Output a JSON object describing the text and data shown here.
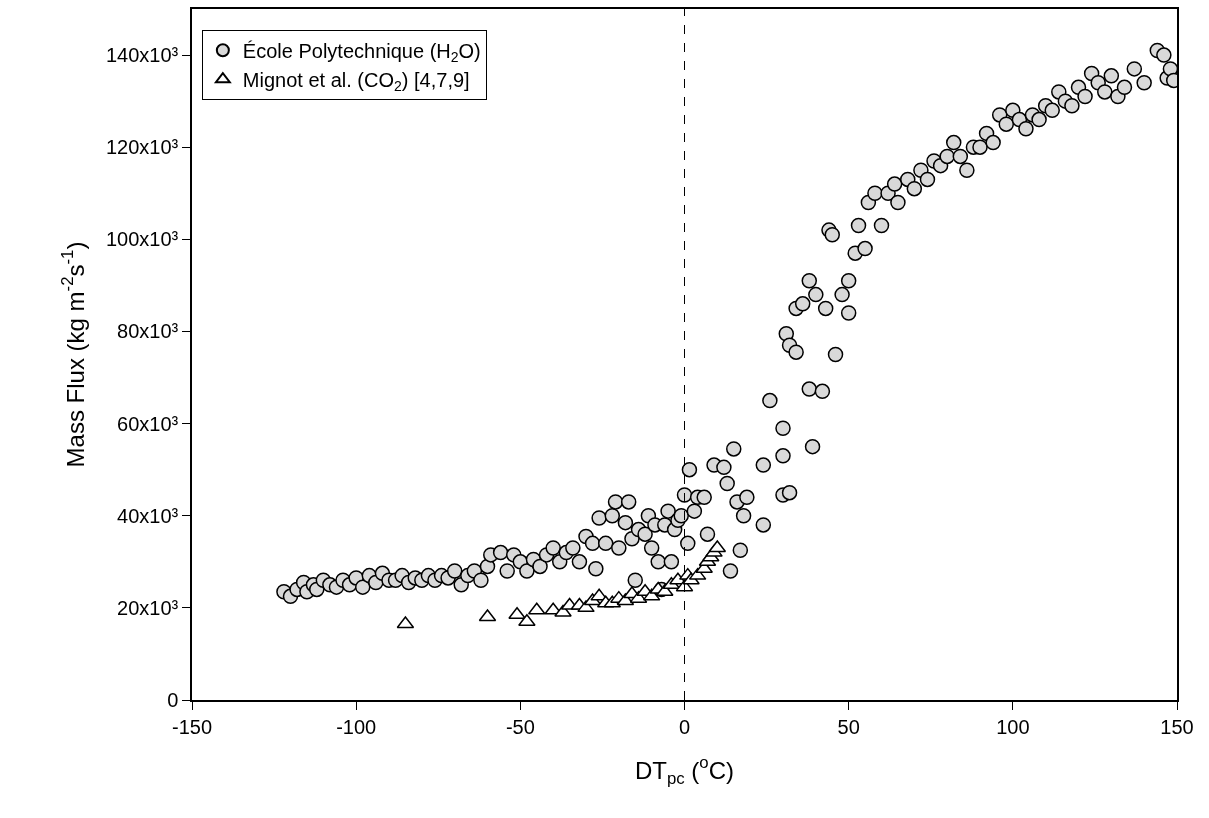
{
  "chart_data": {
    "type": "scatter",
    "xlabel": "DT$_{pc}$ ($^{o}$C)",
    "ylabel": "Mass Flux (kg m$^{-2}$s$^{-1}$)",
    "xlim": [
      -150,
      150
    ],
    "xticks": [
      -150,
      -100,
      -50,
      0,
      50,
      100,
      150
    ],
    "ylim": [
      0,
      150000
    ],
    "yticks": [
      0,
      {
        "value": 20000,
        "label": "20x10³"
      },
      {
        "value": 40000,
        "label": "40x10³"
      },
      {
        "value": 60000,
        "label": "60x10³"
      },
      {
        "value": 80000,
        "label": "80x10³"
      },
      {
        "value": 100000,
        "label": "100x10³"
      },
      {
        "value": 120000,
        "label": "120x10³"
      },
      {
        "value": 140000,
        "label": "140x10³"
      }
    ],
    "legend": "top left",
    "ref_lines": [
      {
        "axis": "x",
        "value": 0,
        "color": "#000000",
        "line_style": "dashed"
      }
    ],
    "series": [
      {
        "name": "École Polytechnique (H$_{2}$O)",
        "color": "#d9d9d9",
        "marker": "circle",
        "x": [
          -122,
          -120,
          -118,
          -116,
          -115,
          -113,
          -112,
          -110,
          -108,
          -106,
          -104,
          -102,
          -100,
          -98,
          -96,
          -94,
          -92,
          -90,
          -88,
          -86,
          -84,
          -82,
          -80,
          -78,
          -76,
          -74,
          -72,
          -70,
          -68,
          -66,
          -64,
          -62,
          -60,
          -59,
          -56,
          -54,
          -52,
          -50,
          -48,
          -46,
          -44,
          -42,
          -40,
          -38,
          -36,
          -34,
          -32,
          -30,
          -28,
          -27,
          -26,
          -24,
          -22,
          -21,
          -20,
          -18,
          -17,
          -16,
          -15,
          -14,
          -12,
          -11,
          -10,
          -9,
          -8,
          -7,
          -6,
          -5,
          -4,
          -3,
          -2,
          -1,
          0,
          1,
          1.5,
          3,
          4,
          6,
          7,
          9,
          12,
          13,
          14,
          15,
          16,
          17,
          18,
          19,
          24,
          24,
          26,
          30,
          30,
          30,
          32,
          31,
          32,
          34,
          34,
          36,
          38,
          38,
          39,
          40,
          42,
          43,
          44,
          45,
          46,
          48,
          50,
          50,
          52,
          53,
          55,
          56,
          58,
          60,
          62,
          64,
          65,
          68,
          70,
          72,
          74,
          76,
          78,
          80,
          82,
          84,
          86,
          88,
          90,
          92,
          94,
          96,
          98,
          100,
          102,
          104,
          106,
          108,
          110,
          112,
          114,
          116,
          118,
          120,
          122,
          124,
          126,
          128,
          130,
          132,
          134,
          137,
          140,
          144,
          146,
          147,
          148,
          149
        ],
        "values": [
          23500,
          22500,
          24000,
          25500,
          23500,
          25000,
          24000,
          26000,
          25000,
          24500,
          26000,
          25000,
          26500,
          24500,
          27000,
          25500,
          27500,
          26000,
          26000,
          27000,
          25500,
          26500,
          26000,
          27000,
          26000,
          27000,
          26500,
          28000,
          25000,
          27000,
          28000,
          26000,
          29000,
          31500,
          32000,
          28000,
          31500,
          30000,
          28000,
          30500,
          29000,
          31500,
          33000,
          30000,
          32000,
          33000,
          30000,
          35500,
          34000,
          28500,
          39500,
          34000,
          40000,
          43000,
          33000,
          38500,
          43000,
          35000,
          26000,
          37000,
          36000,
          40000,
          33000,
          38000,
          30000,
          24000,
          38000,
          41000,
          30000,
          37000,
          39000,
          40000,
          44500,
          34000,
          50000,
          41000,
          44000,
          44000,
          36000,
          51000,
          50500,
          47000,
          28000,
          54500,
          43000,
          32500,
          40000,
          44000,
          38000,
          51000,
          65000,
          44500,
          59000,
          53000,
          45000,
          79500,
          77000,
          75500,
          85000,
          86000,
          91000,
          67500,
          55000,
          88000,
          67000,
          85000,
          102000,
          101000,
          75000,
          88000,
          91000,
          84000,
          97000,
          103000,
          98000,
          108000,
          110000,
          103000,
          110000,
          112000,
          108000,
          113000,
          111000,
          115000,
          113000,
          117000,
          116000,
          118000,
          121000,
          118000,
          115000,
          120000,
          120000,
          123000,
          121000,
          127000,
          125000,
          128000,
          126000,
          124000,
          127000,
          126000,
          129000,
          128000,
          132000,
          130000,
          129000,
          133000,
          131000,
          136000,
          134000,
          132000,
          135500,
          131000,
          133000,
          137000,
          134000,
          141000,
          140000,
          135000,
          137000,
          134500
        ]
      },
      {
        "name": "Mignot et al. (CO$_{2}$) [4,7,9]",
        "color": "#ffffff",
        "marker": "triangle",
        "x": [
          -85,
          -60,
          -51,
          -48,
          -45,
          -40,
          -37,
          -35,
          -32,
          -30,
          -28,
          -26,
          -24,
          -22,
          -20,
          -18,
          -16,
          -14,
          -12,
          -10,
          -8,
          -6,
          -4,
          -2,
          0,
          1,
          2,
          4,
          6,
          7,
          8,
          9,
          10
        ],
        "values": [
          16500,
          18000,
          18500,
          17000,
          19500,
          19500,
          19000,
          20500,
          20500,
          20000,
          21500,
          22500,
          21000,
          21000,
          22000,
          21500,
          23000,
          22000,
          23500,
          22500,
          24000,
          23500,
          25000,
          26000,
          24500,
          27000,
          26000,
          27000,
          28500,
          30000,
          31000,
          32000,
          33000
        ]
      }
    ]
  }
}
